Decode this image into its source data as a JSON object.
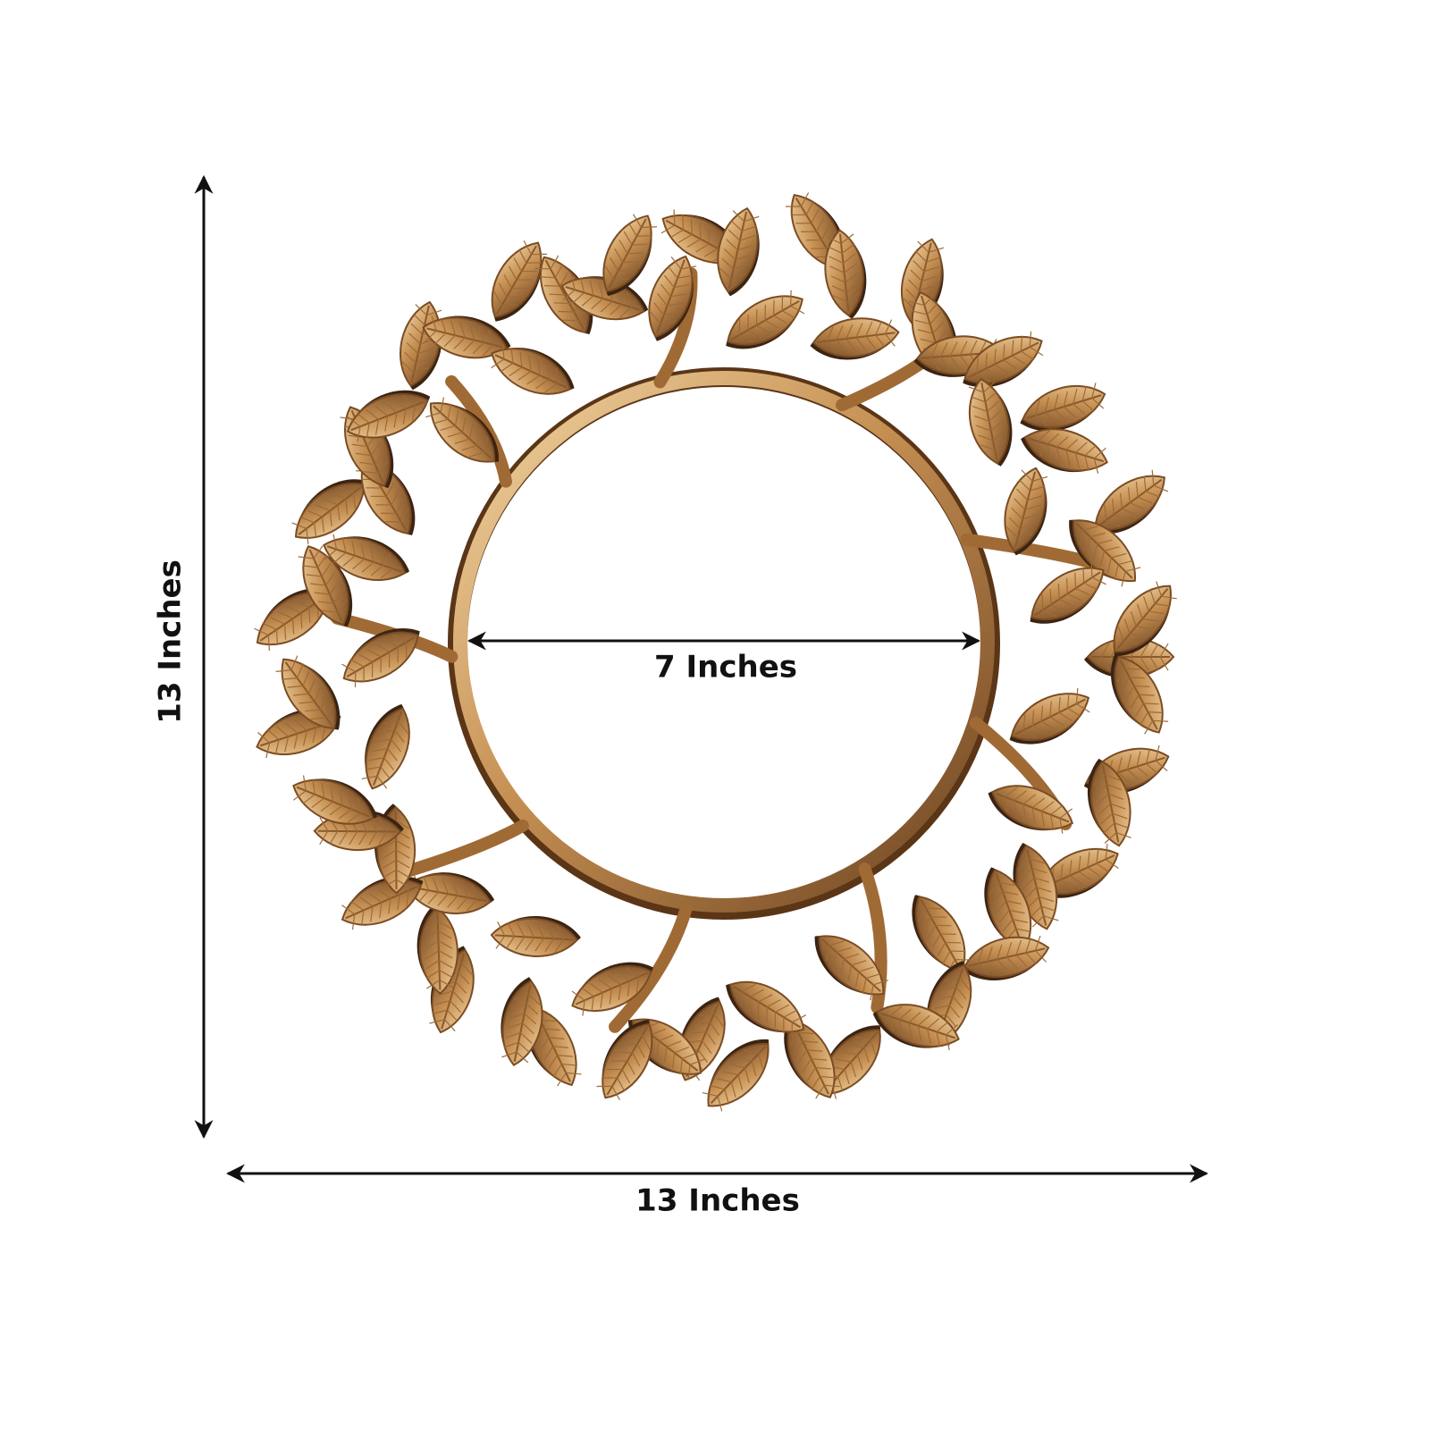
{
  "dimensions": {
    "height_label": "13 Inches",
    "width_label": "13 Inches",
    "inner_diameter_label": "7 Inches"
  }
}
